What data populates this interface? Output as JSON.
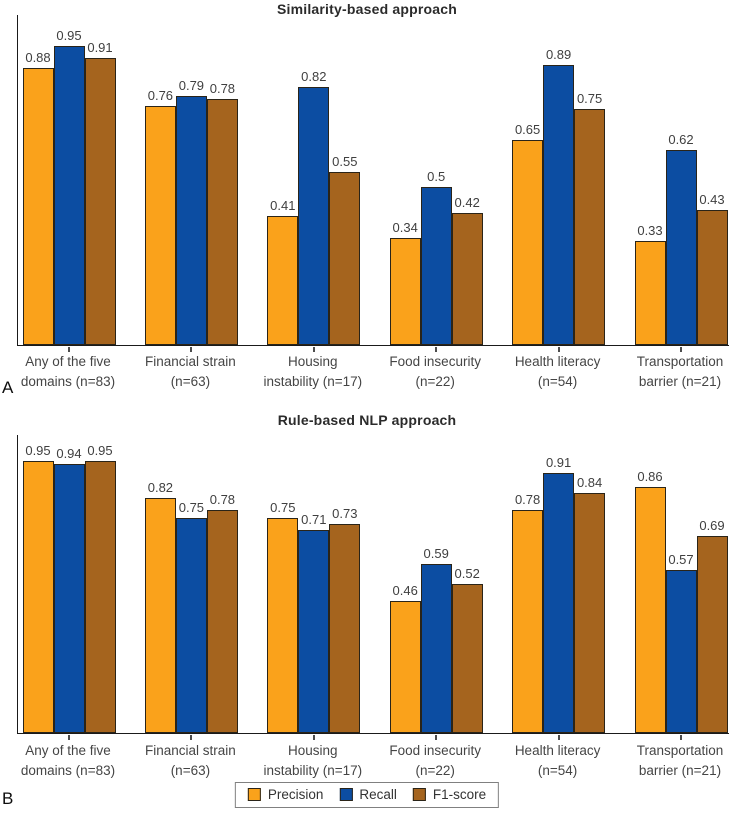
{
  "chart_data": [
    {
      "type": "bar",
      "panel_label": "A",
      "title": "Similarity-based approach",
      "xlabel": "",
      "ylabel": "",
      "ylim": [
        0,
        1.05
      ],
      "grid": false,
      "y_axis_ticks": "none",
      "legend_position": "bottom-shared",
      "categories": [
        "Any of the five\ndomains (n=83)",
        "Financial strain\n(n=63)",
        "Housing\ninstability (n=17)",
        "Food insecurity\n(n=22)",
        "Health literacy\n(n=54)",
        "Transportation\nbarrier (n=21)"
      ],
      "series": [
        {
          "name": "Precision",
          "color": "#FAA21B",
          "values": [
            0.88,
            0.76,
            0.41,
            0.34,
            0.65,
            0.33
          ]
        },
        {
          "name": "Recall",
          "color": "#0C4DA2",
          "values": [
            0.95,
            0.79,
            0.82,
            0.5,
            0.89,
            0.62
          ]
        },
        {
          "name": "F1-score",
          "color": "#A5641E",
          "values": [
            0.91,
            0.78,
            0.55,
            0.42,
            0.75,
            0.43
          ]
        }
      ]
    },
    {
      "type": "bar",
      "panel_label": "B",
      "title": "Rule-based NLP approach",
      "xlabel": "",
      "ylabel": "",
      "ylim": [
        0,
        1.05
      ],
      "grid": false,
      "y_axis_ticks": "none",
      "legend_position": "bottom-shared",
      "categories": [
        "Any of the five\ndomains (n=83)",
        "Financial strain\n(n=63)",
        "Housing\ninstability (n=17)",
        "Food insecurity\n(n=22)",
        "Health literacy\n(n=54)",
        "Transportation\nbarrier (n=21)"
      ],
      "series": [
        {
          "name": "Precision",
          "color": "#FAA21B",
          "values": [
            0.95,
            0.82,
            0.75,
            0.46,
            0.78,
            0.86
          ]
        },
        {
          "name": "Recall",
          "color": "#0C4DA2",
          "values": [
            0.94,
            0.75,
            0.71,
            0.59,
            0.91,
            0.57
          ]
        },
        {
          "name": "F1-score",
          "color": "#A5641E",
          "values": [
            0.95,
            0.78,
            0.73,
            0.52,
            0.84,
            0.69
          ]
        }
      ]
    }
  ]
}
